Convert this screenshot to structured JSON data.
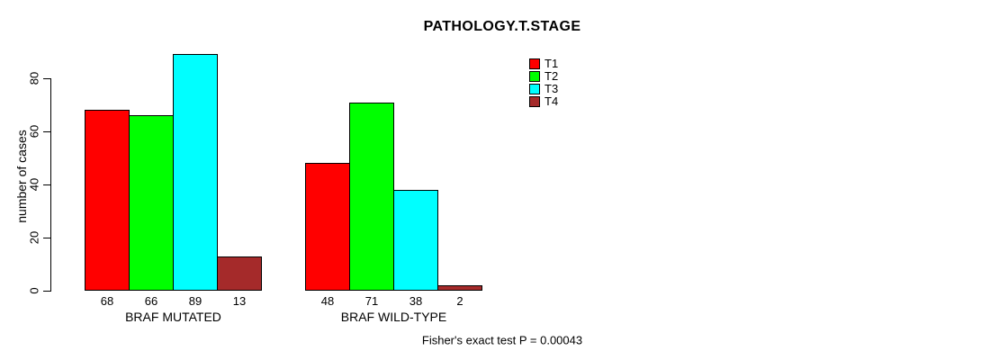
{
  "chart_data": {
    "type": "bar",
    "title": "PATHOLOGY.T.STAGE",
    "categories": [
      "BRAF MUTATED",
      "BRAF WILD-TYPE"
    ],
    "series": [
      {
        "name": "T1",
        "color": "#FF0000",
        "values": [
          68,
          48
        ]
      },
      {
        "name": "T2",
        "color": "#00FF00",
        "values": [
          66,
          71
        ]
      },
      {
        "name": "T3",
        "color": "#00FFFF",
        "values": [
          89,
          38
        ]
      },
      {
        "name": "T4",
        "color": "#A52A2A",
        "values": [
          13,
          2
        ]
      }
    ],
    "xlabel": "",
    "ylabel": "number of cases",
    "ylim": [
      0,
      80
    ],
    "y_ticks": [
      0,
      20,
      40,
      60,
      80
    ],
    "bar_value_labels": [
      [
        68,
        66,
        89,
        13
      ],
      [
        48,
        71,
        38,
        2
      ]
    ],
    "legend_position": "top-right",
    "legend_entries": [
      "T1",
      "T2",
      "T3",
      "T4"
    ],
    "grid": false,
    "annotation": "Fisher's exact test P = 0.00043",
    "bar_border_color": "#000000",
    "background_color": "#FFFFFF"
  }
}
